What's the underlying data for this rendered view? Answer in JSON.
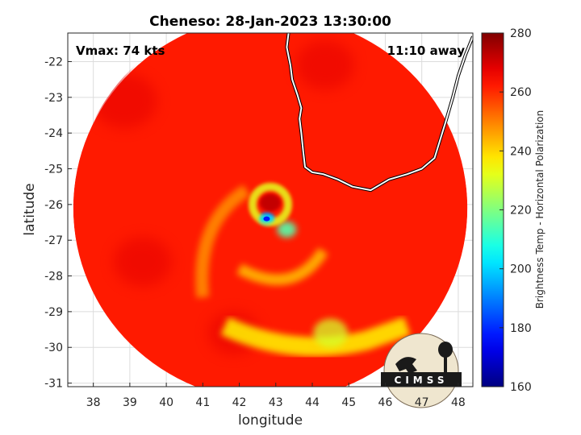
{
  "chart_data": {
    "type": "heatmap",
    "title": "Cheneso: 28-Jan-2023 13:30:00",
    "xlabel": "longitude",
    "ylabel": "latitude",
    "xlim": [
      37.3,
      48.4
    ],
    "ylim": [
      -31.1,
      -21.2
    ],
    "x_ticks": [
      38,
      39,
      40,
      41,
      42,
      43,
      44,
      45,
      46,
      47,
      48
    ],
    "y_ticks": [
      -22,
      -23,
      -24,
      -25,
      -26,
      -27,
      -28,
      -29,
      -30,
      -31
    ],
    "grid": true,
    "annotations": {
      "vmax": "Vmax: 74 kts",
      "away": "11:10 away"
    },
    "colorbar": {
      "label": "Brightness Temp - Horizontal Polarization",
      "min": 160,
      "max": 280,
      "ticks": [
        280,
        260,
        240,
        220,
        200,
        180,
        160
      ],
      "colormap": "jet"
    },
    "swath": {
      "center_lon": 42.85,
      "center_lat": -26.1,
      "radius_deg": 5.4
    },
    "features": [
      {
        "name": "eye",
        "lon": 42.85,
        "lat": -25.95,
        "value": 270
      },
      {
        "name": "eyewall-core",
        "lon": 42.75,
        "lat": -26.4,
        "value": 190
      },
      {
        "name": "inner-rainband",
        "lon": 43.3,
        "lat": -26.7,
        "value": 215
      },
      {
        "name": "southern-rainband",
        "lon": 44.5,
        "lat": -29.6,
        "value": 230
      }
    ],
    "background_value": 262,
    "coastline": [
      [
        43.35,
        -21.2
      ],
      [
        43.3,
        -21.6
      ],
      [
        43.4,
        -22.1
      ],
      [
        43.45,
        -22.5
      ],
      [
        43.6,
        -22.95
      ],
      [
        43.7,
        -23.3
      ],
      [
        43.65,
        -23.6
      ],
      [
        43.7,
        -24.0
      ],
      [
        43.75,
        -24.5
      ],
      [
        43.8,
        -24.95
      ],
      [
        44.0,
        -25.1
      ],
      [
        44.3,
        -25.15
      ],
      [
        44.7,
        -25.3
      ],
      [
        45.1,
        -25.5
      ],
      [
        45.6,
        -25.6
      ],
      [
        46.1,
        -25.3
      ],
      [
        46.6,
        -25.15
      ],
      [
        47.0,
        -25.0
      ],
      [
        47.35,
        -24.7
      ],
      [
        47.5,
        -24.2
      ],
      [
        47.65,
        -23.7
      ],
      [
        47.85,
        -23.0
      ],
      [
        48.0,
        -22.4
      ],
      [
        48.2,
        -21.8
      ],
      [
        48.4,
        -21.3
      ]
    ]
  },
  "logo": {
    "text": "CIMSS"
  }
}
